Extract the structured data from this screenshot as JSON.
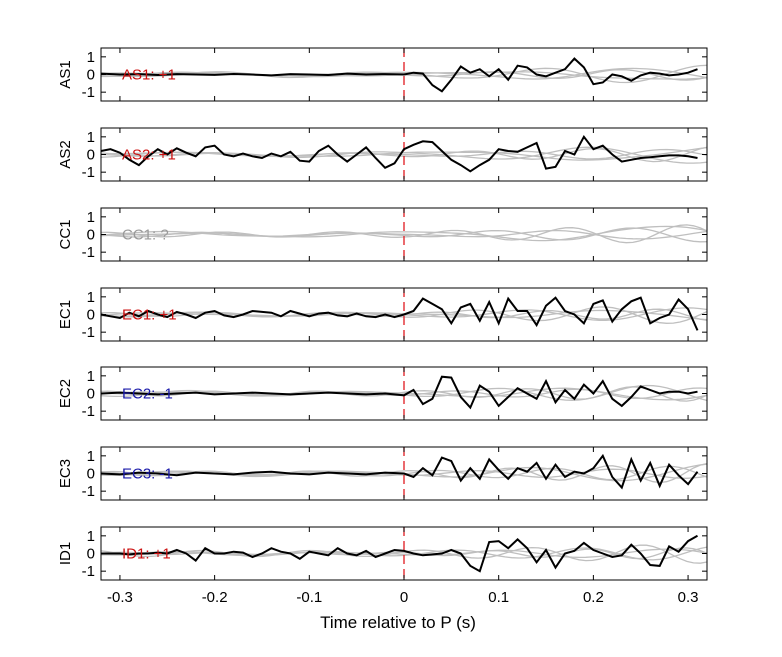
{
  "chart_data": {
    "type": "line",
    "xlabel": "Time relative to P (s)",
    "xlim": [
      -0.32,
      0.32
    ],
    "xticks": [
      -0.3,
      -0.2,
      -0.1,
      0,
      0.1,
      0.2,
      0.3
    ],
    "xtick_labels": [
      "-0.3",
      "-0.2",
      "-0.1",
      "0",
      "0.1",
      "0.2",
      "0.3"
    ],
    "ylim": [
      -1.5,
      1.5
    ],
    "yticks": [
      -1,
      0,
      1
    ],
    "ytick_labels": [
      "-1",
      "0",
      "1"
    ],
    "vertical_marker": {
      "x": 0,
      "color": "#e0191f",
      "style": "dashed"
    },
    "background_trace_color": "#bfbfbf",
    "main_trace_color": "#000000",
    "panels": [
      {
        "ylabel": "AS1",
        "annotation": "AS1: +1",
        "annotation_color": "#cc1111",
        "has_main_trace": true,
        "main_trace": {
          "x": [
            -0.32,
            -0.3,
            -0.28,
            -0.26,
            -0.24,
            -0.22,
            -0.2,
            -0.18,
            -0.16,
            -0.14,
            -0.12,
            -0.1,
            -0.08,
            -0.06,
            -0.04,
            -0.02,
            0.0,
            0.01,
            0.02,
            0.03,
            0.04,
            0.05,
            0.06,
            0.07,
            0.08,
            0.09,
            0.1,
            0.11,
            0.12,
            0.13,
            0.14,
            0.15,
            0.16,
            0.17,
            0.18,
            0.19,
            0.2,
            0.21,
            0.22,
            0.23,
            0.24,
            0.25,
            0.26,
            0.27,
            0.28,
            0.29,
            0.3,
            0.31
          ],
          "y": [
            0.05,
            0.0,
            0.02,
            -0.03,
            0.02,
            0.0,
            -0.02,
            0.03,
            0.0,
            -0.05,
            0.02,
            0.0,
            -0.03,
            0.05,
            0.0,
            0.02,
            0.0,
            0.1,
            0.05,
            -0.6,
            -0.95,
            -0.3,
            0.45,
            0.1,
            0.3,
            -0.1,
            0.3,
            -0.3,
            0.5,
            0.4,
            0.0,
            -0.1,
            0.1,
            0.3,
            0.9,
            0.4,
            -0.55,
            -0.45,
            0.0,
            -0.1,
            -0.35,
            -0.05,
            0.1,
            0.05,
            -0.05,
            0.0,
            0.1,
            0.3
          ]
        }
      },
      {
        "ylabel": "AS2",
        "annotation": "AS2: +1",
        "annotation_color": "#cc1111",
        "has_main_trace": true,
        "main_trace": {
          "x": [
            -0.32,
            -0.31,
            -0.3,
            -0.29,
            -0.28,
            -0.27,
            -0.26,
            -0.25,
            -0.24,
            -0.23,
            -0.22,
            -0.21,
            -0.2,
            -0.19,
            -0.18,
            -0.17,
            -0.16,
            -0.15,
            -0.14,
            -0.13,
            -0.12,
            -0.11,
            -0.1,
            -0.09,
            -0.08,
            -0.07,
            -0.06,
            -0.05,
            -0.04,
            -0.03,
            -0.02,
            -0.01,
            0.0,
            0.01,
            0.02,
            0.03,
            0.04,
            0.05,
            0.06,
            0.07,
            0.08,
            0.09,
            0.1,
            0.11,
            0.12,
            0.13,
            0.14,
            0.15,
            0.16,
            0.17,
            0.18,
            0.19,
            0.2,
            0.21,
            0.22,
            0.23,
            0.24,
            0.25,
            0.26,
            0.27,
            0.28,
            0.29,
            0.3,
            0.31
          ],
          "y": [
            0.2,
            0.3,
            0.1,
            -0.3,
            -0.6,
            -0.1,
            0.3,
            0.0,
            0.35,
            0.1,
            -0.1,
            0.4,
            0.5,
            0.0,
            -0.1,
            0.05,
            -0.1,
            -0.2,
            0.05,
            -0.1,
            0.15,
            -0.35,
            -0.4,
            0.2,
            0.5,
            0.0,
            -0.4,
            0.0,
            0.4,
            -0.2,
            -0.75,
            -0.5,
            0.3,
            0.55,
            0.75,
            0.7,
            0.2,
            -0.3,
            -0.6,
            -0.95,
            -0.6,
            -0.3,
            0.3,
            0.2,
            0.15,
            0.4,
            0.65,
            -0.8,
            -0.7,
            0.2,
            0.0,
            1.0,
            0.3,
            0.5,
            0.0,
            -0.4,
            -0.3,
            -0.2,
            -0.15,
            -0.1,
            -0.05,
            -0.05,
            -0.1,
            -0.2
          ]
        }
      },
      {
        "ylabel": "CC1",
        "annotation": "CC1: ?",
        "annotation_color": "#999999",
        "has_main_trace": false
      },
      {
        "ylabel": "EC1",
        "annotation": "EC1: +1",
        "annotation_color": "#cc1111",
        "has_main_trace": true,
        "main_trace": {
          "x": [
            -0.32,
            -0.31,
            -0.3,
            -0.29,
            -0.28,
            -0.27,
            -0.26,
            -0.25,
            -0.24,
            -0.23,
            -0.22,
            -0.21,
            -0.2,
            -0.19,
            -0.18,
            -0.17,
            -0.16,
            -0.15,
            -0.14,
            -0.13,
            -0.12,
            -0.11,
            -0.1,
            -0.09,
            -0.08,
            -0.07,
            -0.06,
            -0.05,
            -0.04,
            -0.03,
            -0.02,
            -0.01,
            0.0,
            0.01,
            0.02,
            0.03,
            0.04,
            0.05,
            0.06,
            0.07,
            0.08,
            0.09,
            0.1,
            0.11,
            0.12,
            0.13,
            0.14,
            0.15,
            0.16,
            0.17,
            0.18,
            0.19,
            0.2,
            0.21,
            0.22,
            0.23,
            0.24,
            0.25,
            0.26,
            0.27,
            0.28,
            0.29,
            0.3,
            0.31
          ],
          "y": [
            0.0,
            -0.1,
            -0.2,
            0.1,
            -0.1,
            0.2,
            0.0,
            -0.15,
            0.15,
            0.0,
            -0.2,
            0.1,
            0.2,
            -0.05,
            -0.15,
            0.0,
            0.2,
            0.15,
            0.1,
            -0.1,
            0.2,
            0.05,
            -0.1,
            0.05,
            0.1,
            -0.05,
            -0.1,
            0.05,
            -0.1,
            -0.15,
            0.0,
            -0.15,
            0.0,
            0.2,
            0.9,
            0.6,
            0.3,
            -0.5,
            0.4,
            0.6,
            -0.35,
            0.7,
            -0.5,
            0.9,
            0.2,
            0.2,
            -0.6,
            0.5,
            0.95,
            0.2,
            0.0,
            -0.5,
            0.6,
            0.8,
            -0.4,
            0.3,
            0.75,
            0.95,
            -0.5,
            -0.2,
            0.0,
            0.85,
            0.3,
            -0.9
          ]
        }
      },
      {
        "ylabel": "EC2",
        "annotation": "EC2: -1",
        "annotation_color": "#1a1aaa",
        "has_main_trace": true,
        "main_trace": {
          "x": [
            -0.32,
            -0.3,
            -0.28,
            -0.26,
            -0.24,
            -0.22,
            -0.2,
            -0.18,
            -0.16,
            -0.14,
            -0.12,
            -0.1,
            -0.08,
            -0.06,
            -0.04,
            -0.02,
            0.0,
            0.01,
            0.02,
            0.03,
            0.04,
            0.05,
            0.06,
            0.07,
            0.08,
            0.09,
            0.1,
            0.11,
            0.12,
            0.13,
            0.14,
            0.15,
            0.16,
            0.17,
            0.18,
            0.19,
            0.2,
            0.21,
            0.22,
            0.23,
            0.24,
            0.25,
            0.26,
            0.27,
            0.28,
            0.29,
            0.3,
            0.31
          ],
          "y": [
            0.0,
            0.05,
            0.0,
            -0.05,
            0.0,
            0.05,
            -0.05,
            0.0,
            0.05,
            0.0,
            -0.05,
            0.0,
            0.05,
            0.0,
            -0.05,
            0.0,
            -0.1,
            0.2,
            -0.6,
            -0.3,
            0.95,
            0.9,
            -0.2,
            -0.8,
            0.45,
            0.1,
            -0.7,
            -0.2,
            0.3,
            0.0,
            -0.3,
            0.7,
            -0.5,
            0.2,
            -0.3,
            0.5,
            0.0,
            0.7,
            -0.3,
            -0.7,
            -0.2,
            0.4,
            0.2,
            0.0,
            0.1,
            0.1,
            0.0,
            0.1
          ]
        }
      },
      {
        "ylabel": "EC3",
        "annotation": "EC3: -1",
        "annotation_color": "#1a1aaa",
        "has_main_trace": true,
        "main_trace": {
          "x": [
            -0.32,
            -0.3,
            -0.28,
            -0.26,
            -0.24,
            -0.22,
            -0.2,
            -0.18,
            -0.16,
            -0.14,
            -0.12,
            -0.1,
            -0.08,
            -0.06,
            -0.04,
            -0.02,
            0.0,
            0.01,
            0.02,
            0.03,
            0.04,
            0.05,
            0.06,
            0.07,
            0.08,
            0.09,
            0.1,
            0.11,
            0.12,
            0.13,
            0.14,
            0.15,
            0.16,
            0.17,
            0.18,
            0.19,
            0.2,
            0.21,
            0.22,
            0.23,
            0.24,
            0.25,
            0.26,
            0.27,
            0.28,
            0.29,
            0.3,
            0.31
          ],
          "y": [
            0.0,
            -0.05,
            0.05,
            0.0,
            -0.1,
            0.05,
            0.0,
            -0.05,
            0.05,
            0.1,
            0.0,
            -0.05,
            0.05,
            0.0,
            -0.05,
            0.05,
            0.0,
            -0.2,
            0.3,
            -0.1,
            0.9,
            0.7,
            -0.4,
            0.3,
            -0.3,
            0.8,
            0.2,
            -0.3,
            0.3,
            0.1,
            0.6,
            -0.3,
            0.5,
            -0.2,
            0.1,
            0.0,
            0.3,
            1.0,
            -0.2,
            -0.8,
            0.8,
            -0.4,
            0.6,
            -0.7,
            0.5,
            -0.1,
            -0.6,
            0.1
          ]
        }
      },
      {
        "ylabel": "ID1",
        "annotation": "ID1: +1",
        "annotation_color": "#cc1111",
        "has_main_trace": true,
        "main_trace": {
          "x": [
            -0.32,
            -0.31,
            -0.3,
            -0.29,
            -0.28,
            -0.27,
            -0.26,
            -0.25,
            -0.24,
            -0.23,
            -0.22,
            -0.21,
            -0.2,
            -0.19,
            -0.18,
            -0.17,
            -0.16,
            -0.15,
            -0.14,
            -0.13,
            -0.12,
            -0.11,
            -0.1,
            -0.09,
            -0.08,
            -0.07,
            -0.06,
            -0.05,
            -0.04,
            -0.03,
            -0.02,
            -0.01,
            0.0,
            0.01,
            0.02,
            0.03,
            0.04,
            0.05,
            0.06,
            0.07,
            0.08,
            0.09,
            0.1,
            0.11,
            0.12,
            0.13,
            0.14,
            0.15,
            0.16,
            0.17,
            0.18,
            0.19,
            0.2,
            0.21,
            0.22,
            0.23,
            0.24,
            0.25,
            0.26,
            0.27,
            0.28,
            0.29,
            0.3,
            0.31
          ],
          "y": [
            0.0,
            0.0,
            0.0,
            -0.05,
            0.0,
            0.0,
            0.05,
            0.0,
            0.2,
            0.0,
            -0.4,
            0.3,
            0.0,
            0.0,
            0.1,
            0.05,
            -0.2,
            0.0,
            0.3,
            0.1,
            0.0,
            -0.3,
            0.1,
            0.0,
            -0.1,
            0.3,
            0.0,
            -0.1,
            0.15,
            -0.2,
            0.0,
            0.2,
            0.15,
            0.0,
            -0.1,
            -0.05,
            0.0,
            0.2,
            0.0,
            -0.7,
            -1.0,
            0.65,
            0.7,
            0.3,
            0.8,
            0.3,
            -0.5,
            0.2,
            -0.8,
            0.0,
            0.15,
            0.6,
            0.2,
            0.0,
            -0.2,
            -0.1,
            0.5,
            0.0,
            -0.65,
            -0.7,
            0.4,
            0.1,
            0.7,
            1.0
          ]
        }
      }
    ]
  }
}
